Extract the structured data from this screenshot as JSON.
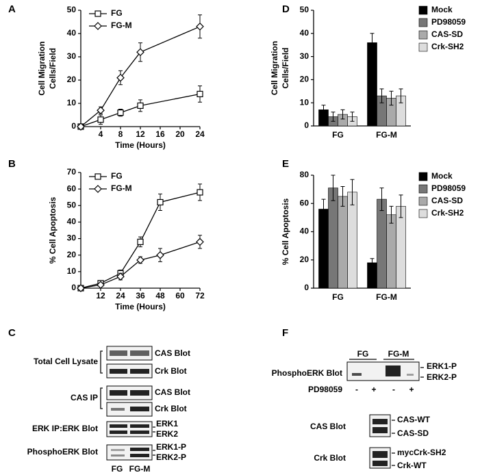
{
  "chart_data": [
    {
      "type": "line",
      "panel": "A",
      "xlabel": "Time (Hours)",
      "ylabel": [
        "Cell Migration",
        "Cells/Field"
      ],
      "x": [
        0,
        4,
        8,
        12,
        24
      ],
      "xlim": [
        0,
        24
      ],
      "xticks": [
        4,
        8,
        12,
        16,
        20,
        24
      ],
      "ylim": [
        0,
        50
      ],
      "yticks": [
        0,
        10,
        20,
        30,
        40,
        50
      ],
      "series": [
        {
          "name": "FG",
          "color": "#000000",
          "marker": "square",
          "values": [
            0,
            3,
            6,
            9,
            14
          ],
          "errors": [
            0,
            2,
            1.5,
            2.5,
            3.5
          ]
        },
        {
          "name": "FG-M",
          "color": "#000000",
          "marker": "diamond",
          "values": [
            0,
            7,
            21,
            32,
            43
          ],
          "errors": [
            0,
            1.5,
            3,
            4,
            5
          ]
        }
      ]
    },
    {
      "type": "line",
      "panel": "B",
      "xlabel": "Time (Hours)",
      "ylabel": [
        "% Cell Apoptosis"
      ],
      "x": [
        0,
        12,
        24,
        36,
        48,
        72
      ],
      "xlim": [
        0,
        72
      ],
      "xticks": [
        12,
        24,
        36,
        48,
        60,
        72
      ],
      "ylim": [
        0,
        70
      ],
      "yticks": [
        0,
        10,
        20,
        30,
        40,
        50,
        60,
        70
      ],
      "series": [
        {
          "name": "FG",
          "color": "#000000",
          "marker": "square",
          "values": [
            0,
            3,
            9,
            28,
            52,
            58
          ],
          "errors": [
            0,
            1,
            2,
            3,
            5,
            5
          ]
        },
        {
          "name": "FG-M",
          "color": "#000000",
          "marker": "diamond",
          "values": [
            0,
            2,
            7,
            17,
            20,
            28
          ],
          "errors": [
            0,
            1,
            2,
            2,
            4,
            4
          ]
        }
      ]
    },
    {
      "type": "bar",
      "panel": "D",
      "ylabel": [
        "Cell Migration",
        "Cells/Field"
      ],
      "categories": [
        "FG",
        "FG-M"
      ],
      "ylim": [
        0,
        50
      ],
      "yticks": [
        0,
        10,
        20,
        30,
        40,
        50
      ],
      "series": [
        {
          "name": "Mock",
          "color": "#000000",
          "values": [
            7,
            36
          ],
          "errors": [
            2,
            4
          ]
        },
        {
          "name": "PD98059",
          "color": "#777777",
          "values": [
            4,
            13
          ],
          "errors": [
            2,
            3
          ]
        },
        {
          "name": "CAS-SD",
          "color": "#aaaaaa",
          "values": [
            5,
            12
          ],
          "errors": [
            2,
            3
          ]
        },
        {
          "name": "Crk-SH2",
          "color": "#dddddd",
          "values": [
            4,
            13
          ],
          "errors": [
            2,
            3
          ]
        }
      ]
    },
    {
      "type": "bar",
      "panel": "E",
      "ylabel": [
        "% Cell Apoptosis"
      ],
      "categories": [
        "FG",
        "FG-M"
      ],
      "ylim": [
        0,
        80
      ],
      "yticks": [
        0,
        20,
        40,
        60,
        80
      ],
      "series": [
        {
          "name": "Mock",
          "color": "#000000",
          "values": [
            56,
            18
          ],
          "errors": [
            7,
            3
          ]
        },
        {
          "name": "PD98059",
          "color": "#777777",
          "values": [
            71,
            63
          ],
          "errors": [
            9,
            8
          ]
        },
        {
          "name": "CAS-SD",
          "color": "#aaaaaa",
          "values": [
            65,
            52
          ],
          "errors": [
            7,
            6
          ]
        },
        {
          "name": "Crk-SH2",
          "color": "#dddddd",
          "values": [
            68,
            58
          ],
          "errors": [
            9,
            8
          ]
        }
      ]
    }
  ],
  "blots_c": {
    "panel": "C",
    "lanes": [
      "FG",
      "FG-M"
    ],
    "groups": [
      {
        "label": "Total Cell Lysate",
        "bands": [
          "CAS Blot",
          "Crk Blot"
        ]
      },
      {
        "label": "CAS IP",
        "bands": [
          "CAS Blot",
          "Crk Blot"
        ]
      },
      {
        "label": "ERK IP:ERK Blot",
        "bands": [
          "ERK1",
          "ERK2"
        ]
      },
      {
        "label": "PhosphoERK Blot",
        "bands": [
          "ERK1-P",
          "ERK2-P"
        ]
      }
    ]
  },
  "blots_f": {
    "panel": "F",
    "lanes": [
      "FG",
      "FG-M"
    ],
    "phospho": {
      "label": "PhosphoERK Blot",
      "bands": [
        "ERK1-P",
        "ERK2-P"
      ]
    },
    "treatment": {
      "label": "PD98059",
      "signs": [
        "-",
        "+",
        "-",
        "+"
      ]
    },
    "cas": {
      "label": "CAS Blot",
      "bands": [
        "CAS-WT",
        "CAS-SD"
      ]
    },
    "crk": {
      "label": "Crk Blot",
      "bands": [
        "mycCrk-SH2",
        "Crk-WT"
      ]
    }
  }
}
